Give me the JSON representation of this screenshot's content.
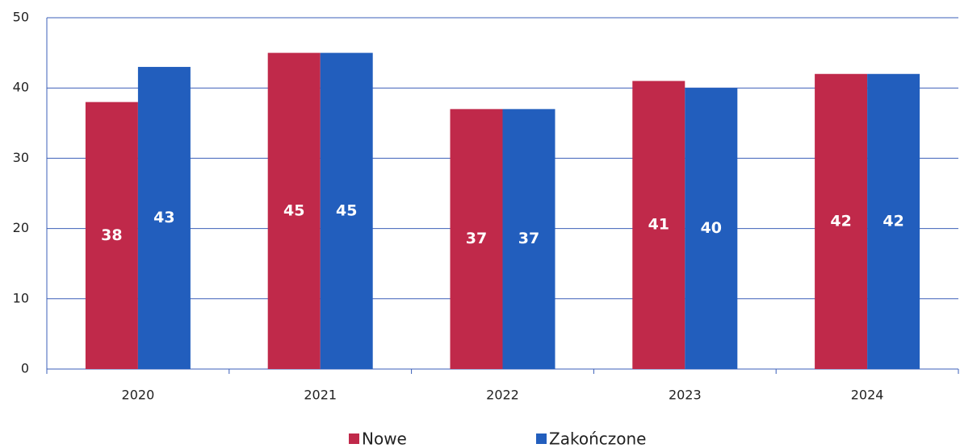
{
  "chart_data": {
    "type": "bar",
    "categories": [
      "2020",
      "2021",
      "2022",
      "2023",
      "2024"
    ],
    "series": [
      {
        "name": "Nowe",
        "color": "#c0294a",
        "values": [
          38,
          45,
          37,
          41,
          42
        ]
      },
      {
        "name": "Zakończone",
        "color": "#225ebd",
        "values": [
          43,
          45,
          37,
          40,
          42
        ]
      }
    ],
    "ylim": [
      0,
      50
    ],
    "yticks": [
      0,
      10,
      20,
      30,
      40,
      50
    ],
    "grid": true,
    "legend": "bottom"
  }
}
